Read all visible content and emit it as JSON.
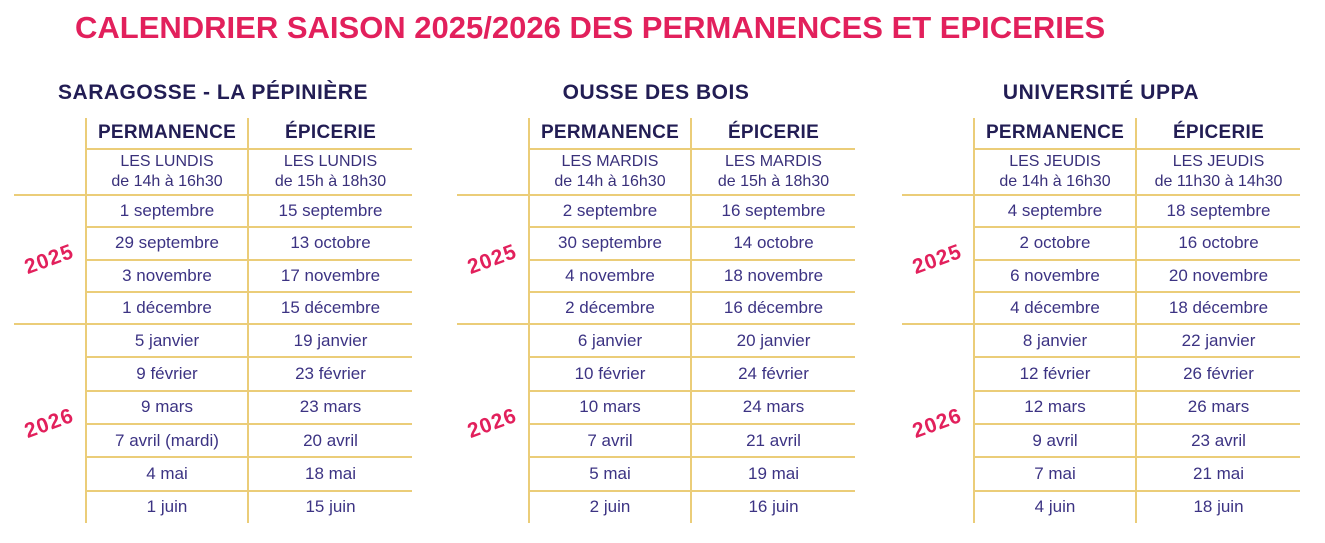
{
  "page_title": "CALENDRIER SAISON 2025/2026 DES PERMANENCES ET EPICERIES",
  "colors": {
    "title_pink": "#E2205C",
    "header_navy": "#221D54",
    "body_navy": "#3C3383",
    "sub_navy": "#39307A",
    "line_gold": "#EBCD79"
  },
  "year_labels": {
    "y2025": "2025",
    "y2026": "2026"
  },
  "tables": [
    {
      "title": "SARAGOSSE - LA PÉPINIÈRE",
      "columns": [
        "PERMANENCE",
        "ÉPICERIE"
      ],
      "schedule": [
        {
          "line1": "LES LUNDIS",
          "line2": "de 14h à 16h30"
        },
        {
          "line1": "LES LUNDIS",
          "line2": "de 15h à 18h30"
        }
      ],
      "rows_2025": [
        [
          "1 septembre",
          "15 septembre"
        ],
        [
          "29 septembre",
          "13 octobre"
        ],
        [
          "3 novembre",
          "17 novembre"
        ],
        [
          "1 décembre",
          "15 décembre"
        ]
      ],
      "rows_2026": [
        [
          "5 janvier",
          "19 janvier"
        ],
        [
          "9 février",
          "23 février"
        ],
        [
          "9 mars",
          "23 mars"
        ],
        [
          "7 avril (mardi)",
          "20 avril"
        ],
        [
          "4 mai",
          "18 mai"
        ],
        [
          "1 juin",
          "15 juin"
        ]
      ]
    },
    {
      "title": "OUSSE DES BOIS",
      "columns": [
        "PERMANENCE",
        "ÉPICERIE"
      ],
      "schedule": [
        {
          "line1": "LES MARDIS",
          "line2": "de 14h à 16h30"
        },
        {
          "line1": "LES MARDIS",
          "line2": "de 15h à 18h30"
        }
      ],
      "rows_2025": [
        [
          "2 septembre",
          "16 septembre"
        ],
        [
          "30 septembre",
          "14 octobre"
        ],
        [
          "4 novembre",
          "18 novembre"
        ],
        [
          "2 décembre",
          "16 décembre"
        ]
      ],
      "rows_2026": [
        [
          "6 janvier",
          "20 janvier"
        ],
        [
          "10 février",
          "24 février"
        ],
        [
          "10 mars",
          "24 mars"
        ],
        [
          "7 avril",
          "21 avril"
        ],
        [
          "5 mai",
          "19 mai"
        ],
        [
          "2 juin",
          "16 juin"
        ]
      ]
    },
    {
      "title": "UNIVERSITÉ UPPA",
      "columns": [
        "PERMANENCE",
        "ÉPICERIE"
      ],
      "schedule": [
        {
          "line1": "LES JEUDIS",
          "line2": "de 14h à 16h30"
        },
        {
          "line1": "LES JEUDIS",
          "line2": "de 11h30 à 14h30"
        }
      ],
      "rows_2025": [
        [
          "4 septembre",
          "18 septembre"
        ],
        [
          "2 octobre",
          "16 octobre"
        ],
        [
          "6 novembre",
          "20 novembre"
        ],
        [
          "4 décembre",
          "18 décembre"
        ]
      ],
      "rows_2026": [
        [
          "8 janvier",
          "22 janvier"
        ],
        [
          "12 février",
          "26 février"
        ],
        [
          "12 mars",
          "26 mars"
        ],
        [
          "9 avril",
          "23 avril"
        ],
        [
          "7 mai",
          "21 mai"
        ],
        [
          "4 juin",
          "18 juin"
        ]
      ]
    }
  ]
}
